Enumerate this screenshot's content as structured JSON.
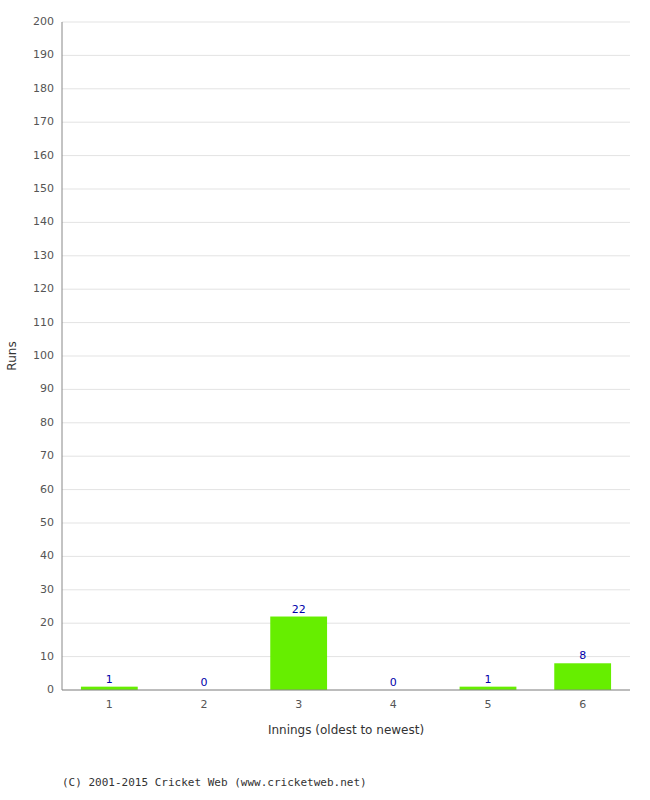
{
  "chart_data": {
    "type": "bar",
    "x_label": "Innings (oldest to newest)",
    "y_label": "Runs",
    "categories": [
      "1",
      "2",
      "3",
      "4",
      "5",
      "6"
    ],
    "values": [
      1,
      0,
      22,
      0,
      1,
      8
    ],
    "color": "#66ee00",
    "ylim": [
      0,
      200
    ],
    "yticks": [
      0,
      10,
      20,
      30,
      40,
      50,
      60,
      70,
      80,
      90,
      100,
      110,
      120,
      130,
      140,
      150,
      160,
      170,
      180,
      190,
      200
    ],
    "grid": true,
    "data_labels": true,
    "annotations": [
      "(C) 2001-2015 Cricket Web (www.cricketweb.net)"
    ]
  }
}
